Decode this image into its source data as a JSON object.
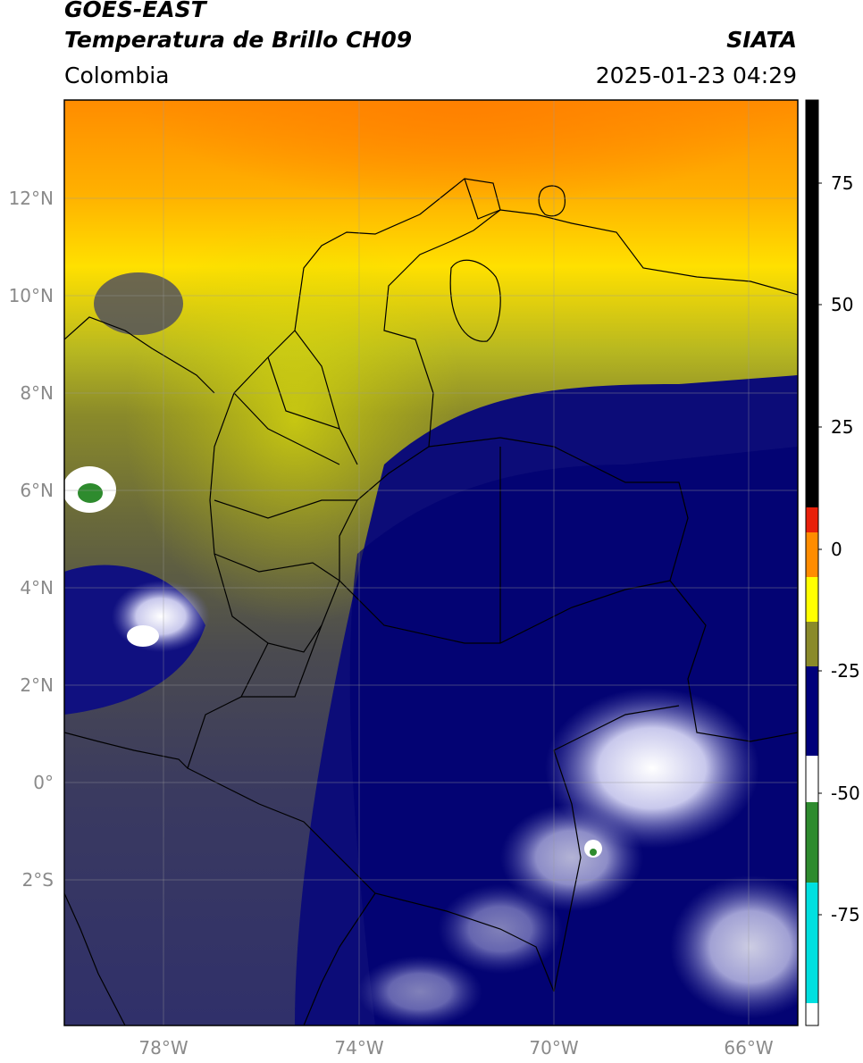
{
  "header": {
    "satellite": "GOES-EAST",
    "product": "Temperatura de Brillo CH09",
    "brand": "SIATA",
    "region": "Colombia",
    "timestamp": "2025-01-23 04:29"
  },
  "map": {
    "lat_labels": [
      "12°N",
      "10°N",
      "8°N",
      "6°N",
      "4°N",
      "2°N",
      "0°",
      "2°S"
    ],
    "lon_labels": [
      "78°W",
      "74°W",
      "70°W",
      "66°W"
    ],
    "grid": true
  },
  "colorbar": {
    "labels": [
      "75",
      "50",
      "25",
      "0",
      "-25",
      "-50",
      "-75"
    ],
    "colors": {
      "black": "#000000",
      "red": "#e8200a",
      "orange": "#ff8c00",
      "yellow": "#ffff00",
      "olive": "#8a8a2a",
      "navy": "#00007a",
      "white": "#ffffff",
      "green": "#2e8b2e",
      "cyan": "#00e0e0"
    }
  }
}
